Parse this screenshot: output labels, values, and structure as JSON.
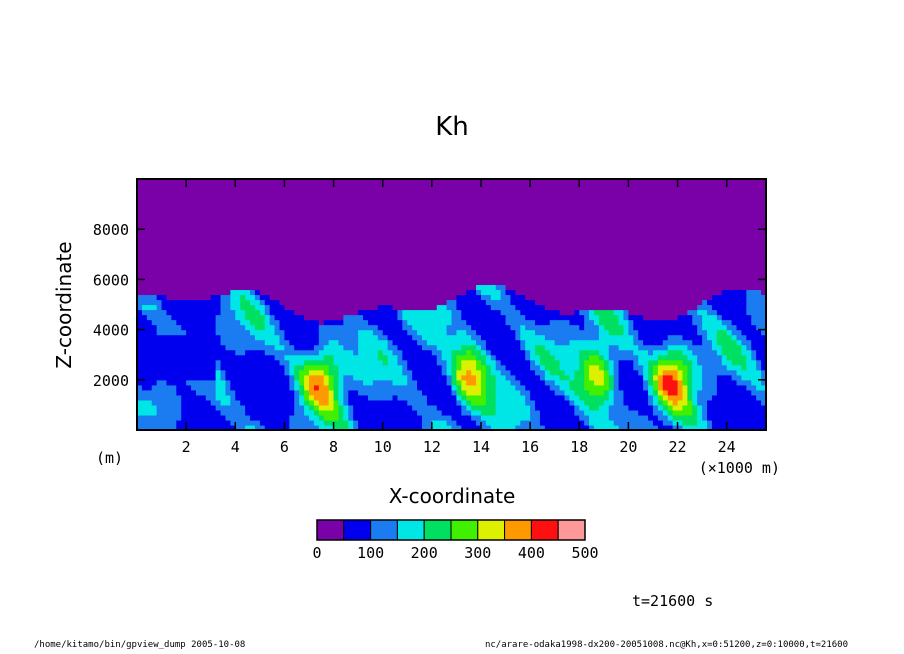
{
  "chart_data": {
    "type": "heatmap",
    "title": "Kh",
    "xlabel": "X-coordinate",
    "ylabel": "Z-coordinate",
    "x_unit_label": "(×1000 m)",
    "y_unit_label": "(m)",
    "xlim": [
      0,
      25.6
    ],
    "ylim": [
      0,
      10000
    ],
    "x_ticks": [
      2,
      4,
      6,
      8,
      10,
      12,
      14,
      16,
      18,
      20,
      22,
      24
    ],
    "y_ticks": [
      2000,
      4000,
      6000,
      8000
    ],
    "colorbar": {
      "levels": [
        0,
        50,
        100,
        150,
        200,
        250,
        300,
        350,
        400,
        450,
        500
      ],
      "labeled_levels": [
        0,
        100,
        200,
        300,
        400,
        500
      ],
      "colors": [
        "#7a00a8",
        "#0000ee",
        "#1a7cf0",
        "#00e6e6",
        "#00e060",
        "#40f000",
        "#dcf000",
        "#ff9900",
        "#ff1010",
        "#ff9898"
      ]
    },
    "field_summary": {
      "background_value": "0-50 above approximately 5500 m",
      "turbulent_layer_top_m": 5500,
      "local_maxima_x_km": [
        7.5,
        13.5,
        18.8,
        21.8
      ]
    }
  },
  "annotations": {
    "time": "t=21600 s",
    "footer_left": "/home/kitamo/bin/gpview_dump  2005-10-08",
    "footer_right": "nc/arare-odaka1998-dx200-20051008.nc@Kh,x=0:51200,z=0:10000,t=21600"
  }
}
